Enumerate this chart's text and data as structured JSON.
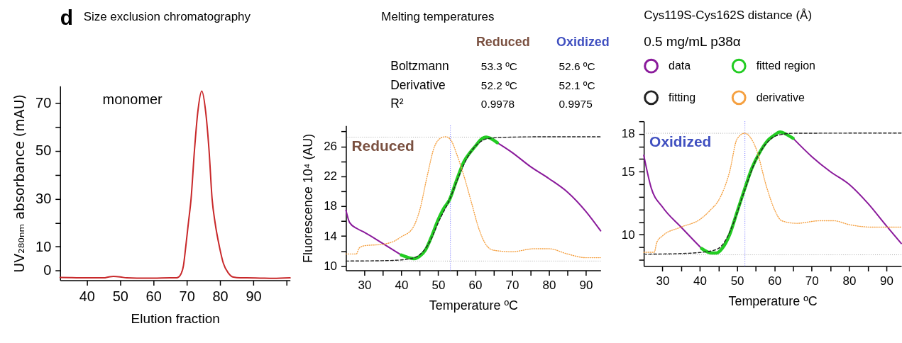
{
  "chart_data": [
    {
      "type": "line",
      "title": "Size exclusion chromatography",
      "xlabel": "Elution fraction",
      "ylabel": "UV₂₈₀ₙₘ absorbance (mAU)",
      "annotations": [
        "d",
        "monomer"
      ],
      "xlim": [
        32,
        101
      ],
      "xticks": [
        40,
        50,
        60,
        70,
        80,
        90,
        {
          "value": 100,
          "label": null
        }
      ],
      "ylim": [
        -4,
        77
      ],
      "yticks": [
        0,
        10,
        {
          "value": 20,
          "label": null
        },
        30,
        {
          "value": 40,
          "label": null
        },
        50,
        {
          "value": 60,
          "label": null
        },
        70
      ],
      "grid": false,
      "marker": "none",
      "series": [
        {
          "color": "#c8282a",
          "line_style": "solid",
          "x": [
            32,
            35,
            40,
            45,
            47,
            48,
            50,
            52,
            55,
            60,
            65,
            67,
            68,
            69,
            69.7,
            70.5,
            71.3,
            72.3,
            73.3,
            74.5,
            75.7,
            76.7,
            77.6,
            78.5,
            79.8,
            81,
            82.5,
            84,
            86,
            88,
            92,
            96,
            101
          ],
          "values": [
            -2.8,
            -2.9,
            -3.0,
            -3.0,
            -2.5,
            -2.4,
            -2.6,
            -3.0,
            -3.1,
            -3.1,
            -3.0,
            -3.0,
            -2.0,
            2,
            10,
            20,
            30,
            50,
            66,
            74.9,
            66,
            50,
            30,
            20,
            10,
            3,
            -1,
            -2.7,
            -3.0,
            -3.0,
            -3.1,
            -3.2,
            -3.0
          ]
        }
      ]
    },
    {
      "type": "other",
      "title": "Melting temperatures",
      "annotations": [
        "Reduced",
        "Oxidized",
        "Boltzmann",
        "53.3 ºC",
        "52.6 ºC",
        "Derivative",
        "52.2 ºC",
        "52.1 ºC",
        "R²",
        "0.9978",
        "0.9975"
      ]
    },
    {
      "type": "line",
      "xlabel": "Temperature ºC",
      "ylabel": "Fluorescence 10⁴ (AU)",
      "annotations": [
        "Reduced"
      ],
      "xlim": [
        25,
        94
      ],
      "xticks": [
        30,
        {
          "value": 35,
          "label": null
        },
        40,
        {
          "value": 45,
          "label": null
        },
        50,
        {
          "value": 55,
          "label": null
        },
        60,
        {
          "value": 65,
          "label": null
        },
        70,
        {
          "value": 75,
          "label": null
        },
        80,
        {
          "value": 85,
          "label": null
        },
        90
      ],
      "ylim": [
        9.4,
        28.8
      ],
      "yticks": [
        10,
        {
          "value": 12,
          "label": null
        },
        14,
        {
          "value": 16,
          "label": null
        },
        18,
        {
          "value": 20,
          "label": null
        },
        22,
        {
          "value": 24,
          "label": null
        },
        26,
        {
          "value": 28,
          "label": null
        }
      ],
      "grid": false,
      "marker": "none",
      "ref_lines": [
        {
          "axis": "x",
          "value": 53.3,
          "color": "#6b6bff",
          "line_style": "dotted"
        },
        {
          "axis": "y",
          "value": 27.25,
          "color": "#aaaaaa",
          "line_style": "dotted"
        },
        {
          "axis": "y",
          "value": 10.65,
          "color": "#aaaaaa",
          "line_style": "dotted"
        }
      ],
      "series": [
        {
          "color": "#8a1a9b",
          "line_style": "solid",
          "x": [
            25,
            26,
            28,
            30,
            35,
            40,
            53,
            66,
            70,
            75,
            80,
            85,
            90,
            94
          ],
          "values": [
            17.45,
            15.8,
            15.0,
            14.5,
            13.0,
            11.45,
            null,
            26.5,
            25.2,
            23.3,
            21.7,
            19.9,
            17.3,
            14.7
          ]
        },
        {
          "color": "#22cc22",
          "line_style": "solid",
          "x": [
            40,
            42,
            43.5,
            45,
            46.5,
            48,
            50,
            51.5,
            53,
            55,
            57,
            58.5,
            60,
            61.5,
            63,
            64.5,
            66
          ],
          "values": [
            11.45,
            11.1,
            10.96,
            11.3,
            12.1,
            13.7,
            16.2,
            17.7,
            18.8,
            21.5,
            24.0,
            25.1,
            26.0,
            26.9,
            27.25,
            27.0,
            26.5
          ]
        },
        {
          "color": "#222222",
          "line_style": "dashed",
          "x": [
            25,
            35,
            40,
            44,
            46,
            48,
            50,
            53,
            56,
            58,
            60,
            62,
            64,
            70,
            80,
            94
          ],
          "values": [
            10.65,
            10.7,
            10.8,
            11.2,
            12.0,
            13.5,
            15.8,
            18.8,
            22.5,
            24.6,
            26.0,
            26.8,
            27.1,
            27.25,
            27.3,
            27.3
          ]
        },
        {
          "color": "#f5a040",
          "line_style": "dotted",
          "x": [
            25,
            27.8,
            28.6,
            30,
            35,
            38,
            40,
            43,
            45,
            47,
            49,
            51,
            52,
            53.5,
            55,
            57,
            59,
            61,
            63,
            65,
            70,
            76,
            80,
            85,
            90,
            94
          ],
          "values": [
            11.6,
            11.6,
            12.4,
            12.7,
            12.9,
            13.3,
            13.9,
            15.0,
            17.5,
            22,
            26,
            27.2,
            27.3,
            26.8,
            25.0,
            22.0,
            18.5,
            15.0,
            12.8,
            12.1,
            11.9,
            12.3,
            12.3,
            11.6,
            11.1,
            11.1
          ]
        }
      ]
    },
    {
      "type": "line",
      "xlabel": "Temperature ºC",
      "annotations": [
        "Oxidized",
        "Cys119S-Cys162S distance (Å)"
      ],
      "legend": "top",
      "legend_title": "0.5 mg/mL p38α",
      "xlim": [
        25,
        94
      ],
      "xticks": [
        30,
        {
          "value": 35,
          "label": null
        },
        40,
        {
          "value": 45,
          "label": null
        },
        50,
        {
          "value": 55,
          "label": null
        },
        60,
        {
          "value": 65,
          "label": null
        },
        70,
        {
          "value": 75,
          "label": null
        },
        80,
        {
          "value": 85,
          "label": null
        },
        90
      ],
      "ylim": [
        7.5,
        19
      ],
      "yticks": [
        {
          "value": 8,
          "label": null
        },
        {
          "value": 9,
          "label": null
        },
        10,
        {
          "value": 11,
          "label": null
        },
        {
          "value": 12,
          "label": null
        },
        {
          "value": 13,
          "label": null
        },
        {
          "value": 14,
          "label": null
        },
        15,
        {
          "value": 16,
          "label": null
        },
        {
          "value": 17,
          "label": null
        },
        18,
        {
          "value": 19,
          "label": null
        }
      ],
      "grid": false,
      "marker": "none",
      "ref_lines": [
        {
          "axis": "x",
          "value": 52.1,
          "color": "#6b6bff",
          "line_style": "dotted"
        },
        {
          "axis": "y",
          "value": 18.05,
          "color": "#aaaaaa",
          "line_style": "dotted"
        },
        {
          "axis": "y",
          "value": 8.4,
          "color": "#aaaaaa",
          "line_style": "dotted"
        }
      ],
      "series": [
        {
          "name": "data",
          "color": "#8a1a9b",
          "line_style": "solid",
          "x": [
            25,
            27,
            30,
            35,
            40.5,
            53,
            65,
            70,
            75,
            80,
            85,
            90,
            94
          ],
          "values": [
            16.3,
            13.7,
            12.2,
            10.6,
            8.9,
            null,
            17.65,
            16.2,
            15.0,
            14.0,
            12.5,
            10.7,
            9.3
          ]
        },
        {
          "name": "fitted region",
          "color": "#22cc22",
          "line_style": "solid",
          "x": [
            40.5,
            43,
            44.5,
            46,
            48,
            50,
            52,
            54,
            56,
            58,
            60,
            61.5,
            63,
            65
          ],
          "values": [
            8.9,
            8.55,
            8.55,
            8.9,
            10.0,
            11.8,
            13.6,
            15.3,
            16.5,
            17.4,
            17.9,
            18.15,
            18.0,
            17.65
          ]
        },
        {
          "name": "fitting",
          "color": "#222222",
          "line_style": "dashed",
          "x": [
            25,
            35,
            42,
            45,
            47,
            49,
            52,
            55,
            58,
            61,
            65,
            94
          ],
          "values": [
            8.45,
            8.5,
            8.65,
            8.9,
            9.6,
            10.9,
            13.5,
            15.9,
            17.3,
            17.9,
            18.05,
            18.07
          ]
        },
        {
          "name": "derivative",
          "color": "#f5a040",
          "line_style": "dotted",
          "x": [
            25,
            27.8,
            28.5,
            30,
            35,
            40,
            43,
            45,
            48,
            50,
            52,
            55,
            58,
            60,
            62,
            66,
            72,
            76,
            80,
            86,
            90,
            94
          ],
          "values": [
            8.6,
            8.6,
            9.4,
            9.9,
            10.6,
            11.2,
            12.0,
            12.7,
            15.0,
            17.6,
            18.05,
            16.9,
            13.7,
            12.0,
            11.1,
            10.9,
            11.1,
            11.1,
            10.8,
            10.6,
            10.6,
            10.6
          ]
        }
      ]
    }
  ]
}
